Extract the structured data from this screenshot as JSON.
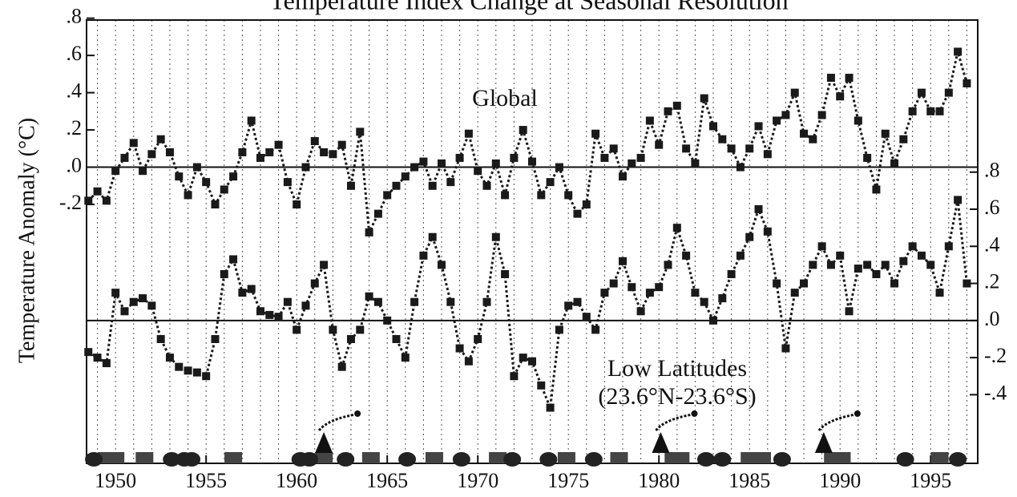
{
  "chart_data": {
    "type": "line",
    "title": "Temperature Index Change at Seasonal Resolution",
    "ylabel": "Temperature Anomaly (°C)",
    "annotation": "(23.6°N-23.6°S)",
    "xlim": [
      1948.4,
      1997.6
    ],
    "xticks": [
      1950,
      1955,
      1960,
      1965,
      1970,
      1975,
      1980,
      1985,
      1990,
      1995
    ],
    "xgrid": [
      1949,
      1950,
      1951,
      1952,
      1953,
      1954,
      1955,
      1956,
      1957,
      1958,
      1959,
      1960,
      1961,
      1962,
      1963,
      1964,
      1965,
      1966,
      1967,
      1968,
      1969,
      1970,
      1971,
      1972,
      1973,
      1974,
      1975,
      1976,
      1977,
      1978,
      1979,
      1980,
      1981,
      1982,
      1983,
      1984,
      1985,
      1986,
      1987,
      1988,
      1989,
      1990,
      1991,
      1992,
      1993,
      1994,
      1995,
      1996,
      1997
    ],
    "ylim": [
      -1.59,
      0.79
    ],
    "yticks": [
      {
        "value": 0.8,
        "label": ".8"
      },
      {
        "value": 0.6,
        "label": ".6"
      },
      {
        "value": 0.4,
        "label": ".4"
      },
      {
        "value": 0.2,
        "label": ".2"
      },
      {
        "value": 0,
        "label": ".0"
      },
      {
        "value": -0.2,
        "label": "-.2"
      }
    ],
    "y2lim": [
      -0.77,
      1.62
    ],
    "y2ticks": [
      {
        "value": 0.8,
        "label": ".8"
      },
      {
        "value": 0.6,
        "label": ".6"
      },
      {
        "value": 0.4,
        "label": ".4"
      },
      {
        "value": 0.2,
        "label": ".2"
      },
      {
        "value": 0,
        "label": ".0"
      },
      {
        "value": -0.2,
        "label": "-.2"
      },
      {
        "value": -0.4,
        "label": "-.4"
      }
    ],
    "zero_line": true,
    "x": [
      1948.5,
      1949.0,
      1949.5,
      1950.0,
      1950.5,
      1951.0,
      1951.5,
      1952.0,
      1952.5,
      1953.0,
      1953.5,
      1954.0,
      1954.5,
      1955.0,
      1955.5,
      1956.0,
      1956.5,
      1957.0,
      1957.5,
      1958.0,
      1958.5,
      1959.0,
      1959.5,
      1960.0,
      1960.5,
      1961.0,
      1961.5,
      1962.0,
      1962.5,
      1963.0,
      1963.5,
      1964.0,
      1964.5,
      1965.0,
      1965.5,
      1966.0,
      1966.5,
      1967.0,
      1967.5,
      1968.0,
      1968.5,
      1969.0,
      1969.5,
      1970.0,
      1970.5,
      1971.0,
      1971.5,
      1972.0,
      1972.5,
      1973.0,
      1973.5,
      1974.0,
      1974.5,
      1975.0,
      1975.5,
      1976.0,
      1976.5,
      1977.0,
      1977.5,
      1978.0,
      1978.5,
      1979.0,
      1979.5,
      1980.0,
      1980.5,
      1981.0,
      1981.5,
      1982.0,
      1982.5,
      1983.0,
      1983.5,
      1984.0,
      1984.5,
      1985.0,
      1985.5,
      1986.0,
      1986.5,
      1987.0,
      1987.5,
      1988.0,
      1988.5,
      1989.0,
      1989.5,
      1990.0,
      1990.5,
      1991.0,
      1991.5,
      1992.0,
      1992.5,
      1993.0,
      1993.5,
      1994.0,
      1994.5,
      1995.0,
      1995.5,
      1996.0,
      1996.5,
      1997.0
    ],
    "series": [
      {
        "name": "Global",
        "color": "#1a1a1a",
        "values": [
          -0.18,
          -0.13,
          -0.18,
          -0.02,
          0.05,
          0.13,
          -0.02,
          0.07,
          0.15,
          0.08,
          -0.05,
          -0.15,
          0.0,
          -0.08,
          -0.2,
          -0.12,
          -0.05,
          0.08,
          0.25,
          0.05,
          0.08,
          0.12,
          -0.08,
          -0.2,
          0.0,
          0.14,
          0.08,
          0.07,
          0.12,
          -0.1,
          0.19,
          -0.35,
          -0.25,
          -0.15,
          -0.1,
          -0.05,
          0.0,
          0.03,
          -0.1,
          0.02,
          -0.08,
          0.05,
          0.18,
          -0.02,
          -0.1,
          0.02,
          -0.15,
          0.05,
          0.2,
          0.03,
          -0.15,
          -0.08,
          0.0,
          -0.15,
          -0.25,
          -0.2,
          0.18,
          0.05,
          0.1,
          -0.05,
          0.02,
          0.05,
          0.25,
          0.12,
          0.3,
          0.33,
          0.1,
          0.02,
          0.37,
          0.22,
          0.15,
          0.1,
          0.0,
          0.1,
          0.22,
          0.07,
          0.25,
          0.28,
          0.4,
          0.18,
          0.15,
          0.28,
          0.48,
          0.38,
          0.48,
          0.25,
          0.05,
          -0.12,
          0.18,
          0.02,
          0.15,
          0.3,
          0.4,
          0.3,
          0.3,
          0.4,
          0.62,
          0.45
        ]
      },
      {
        "name": "Low Latitudes",
        "color": "#1a1a1a",
        "axis": "y2",
        "values": [
          -0.17,
          -0.2,
          -0.23,
          0.15,
          0.05,
          0.1,
          0.12,
          0.08,
          -0.1,
          -0.2,
          -0.25,
          -0.27,
          -0.28,
          -0.3,
          -0.1,
          0.25,
          0.33,
          0.15,
          0.17,
          0.05,
          0.03,
          0.02,
          0.1,
          -0.05,
          0.08,
          0.2,
          0.3,
          -0.05,
          -0.25,
          -0.1,
          -0.05,
          0.13,
          0.1,
          0.0,
          -0.1,
          -0.2,
          0.1,
          0.35,
          0.45,
          0.3,
          0.1,
          -0.15,
          -0.22,
          -0.1,
          0.1,
          0.45,
          0.25,
          -0.3,
          -0.2,
          -0.22,
          -0.35,
          -0.47,
          -0.05,
          0.08,
          0.1,
          0.02,
          -0.05,
          0.15,
          0.2,
          0.32,
          0.18,
          0.05,
          0.15,
          0.18,
          0.3,
          0.5,
          0.35,
          0.15,
          0.1,
          0.0,
          0.12,
          0.25,
          0.35,
          0.45,
          0.6,
          0.48,
          0.2,
          -0.15,
          0.15,
          0.2,
          0.3,
          0.4,
          0.3,
          0.35,
          0.05,
          0.28,
          0.3,
          0.25,
          0.3,
          0.2,
          0.32,
          0.4,
          0.35,
          0.3,
          0.15,
          0.4,
          0.65,
          0.2
        ]
      }
    ],
    "events": [
      {
        "shape": "square",
        "x": [
          1949.5,
          1950.0,
          1951.6,
          1956.5,
          1961.5,
          1964.1,
          1967.6,
          1971.1,
          1974.9,
          1977.8,
          1980.8,
          1981.2,
          1985.0,
          1985.7,
          1989.6,
          1990.1,
          1995.5
        ]
      },
      {
        "shape": "circle",
        "x": [
          1948.8,
          1953.1,
          1953.8,
          1954.2,
          1960.2,
          1960.7,
          1962.7,
          1966.1,
          1969.1,
          1971.9,
          1973.9,
          1976.4,
          1982.6,
          1983.5,
          1986.8,
          1993.6,
          1996.5
        ]
      },
      {
        "shape": "triangle",
        "x": [
          1961.5,
          1980.1,
          1989.1
        ]
      }
    ]
  }
}
